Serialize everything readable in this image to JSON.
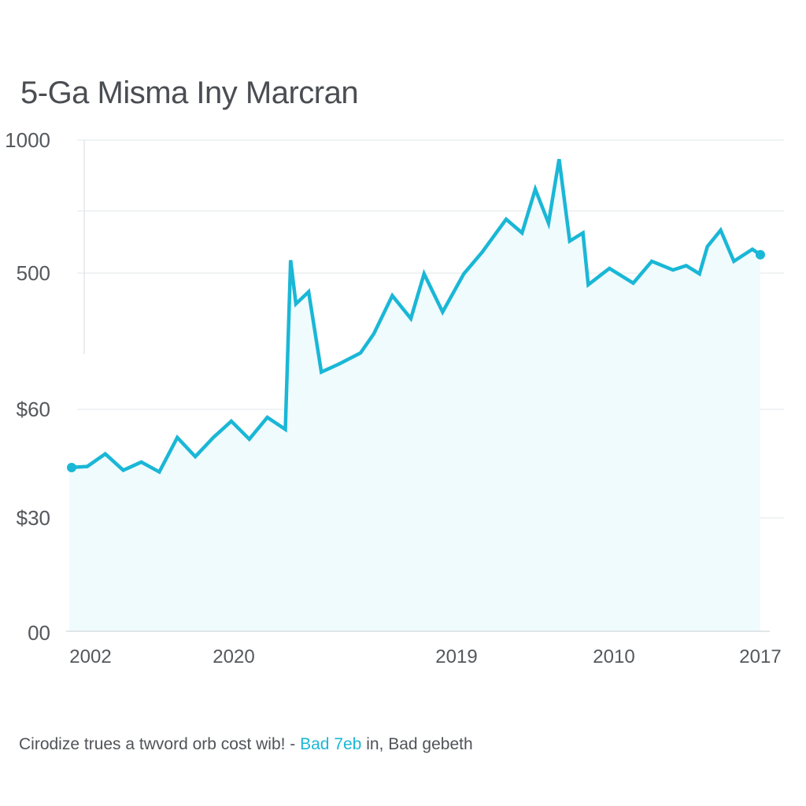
{
  "chart_data": {
    "type": "area",
    "title": "5-Ga Misma Iny Marcran",
    "xlabel": "",
    "ylabel": "",
    "y_tick_labels": [
      "1000",
      "500",
      "$60",
      "$30",
      "00"
    ],
    "x_tick_labels": [
      "2002",
      "2020",
      "2019",
      "2010",
      "2017"
    ],
    "grid": true,
    "series": [
      {
        "color": "#1ab7d6",
        "fill": "#f0fbfd",
        "points": [
          [
            0.0,
            400
          ],
          [
            0.68,
            402
          ],
          [
            1.36,
            425
          ],
          [
            2.04,
            395
          ],
          [
            2.72,
            410
          ],
          [
            3.4,
            392
          ],
          [
            4.08,
            455
          ],
          [
            4.76,
            420
          ],
          [
            5.44,
            455
          ],
          [
            6.12,
            485
          ],
          [
            6.8,
            452
          ],
          [
            7.48,
            492
          ],
          [
            8.16,
            470
          ],
          [
            8.36,
            780
          ],
          [
            8.56,
            700
          ],
          [
            9.04,
            722
          ],
          [
            9.52,
            575
          ],
          [
            10.2,
            590
          ],
          [
            11.0,
            610
          ],
          [
            11.5,
            645
          ],
          [
            12.2,
            715
          ],
          [
            12.9,
            673
          ],
          [
            13.4,
            755
          ],
          [
            14.1,
            685
          ],
          [
            14.9,
            755
          ],
          [
            15.6,
            795
          ],
          [
            16.5,
            855
          ],
          [
            17.1,
            830
          ],
          [
            17.6,
            910
          ],
          [
            18.1,
            848
          ],
          [
            18.5,
            965
          ],
          [
            18.9,
            815
          ],
          [
            19.4,
            830
          ],
          [
            19.6,
            735
          ],
          [
            20.4,
            765
          ],
          [
            21.3,
            738
          ],
          [
            22.0,
            778
          ],
          [
            22.8,
            762
          ],
          [
            23.3,
            770
          ],
          [
            23.8,
            755
          ],
          [
            24.1,
            805
          ],
          [
            24.6,
            835
          ],
          [
            25.1,
            778
          ],
          [
            25.8,
            800
          ],
          [
            26.1,
            790
          ]
        ]
      }
    ]
  },
  "caption": {
    "text_before": "Cirodize trues a twvord orb cost wib! - ",
    "highlight": "Bad 7eb",
    "text_after": " in, Bad gebeth"
  }
}
